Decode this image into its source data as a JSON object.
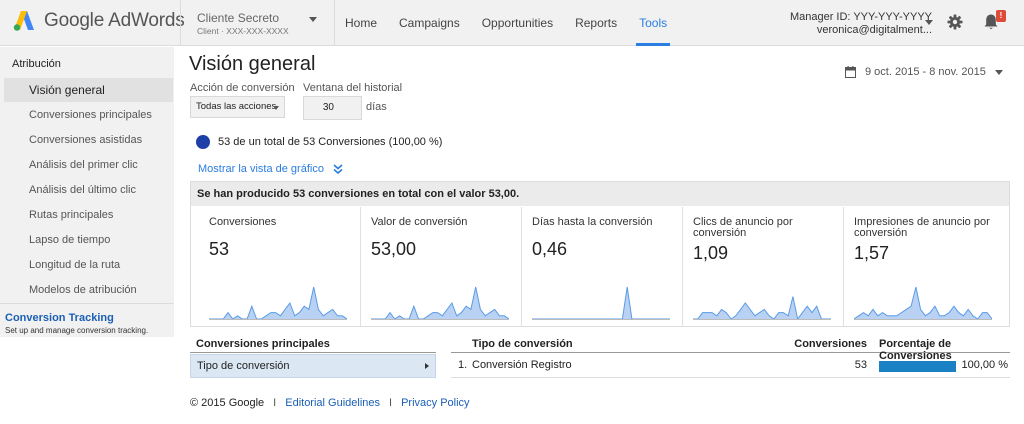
{
  "header": {
    "app_name": "Google AdWords",
    "client_name": "Cliente Secreto",
    "client_id": "Client · XXX-XXX-XXXX",
    "nav": [
      "Home",
      "Campaigns",
      "Opportunities",
      "Reports",
      "Tools"
    ],
    "active_nav": "Tools",
    "manager_id": "Manager ID: YYY-YYY-YYYY",
    "manager_email": "veronica@digitalment...",
    "notification_badge": "!",
    "icons": [
      "adwords-logo-icon",
      "gear-icon",
      "bell-icon"
    ]
  },
  "sidebar": {
    "heading": "Atribución",
    "items": [
      "Visión general",
      "Conversiones principales",
      "Conversiones asistidas",
      "Análisis del primer clic",
      "Análisis del último clic",
      "Rutas principales",
      "Lapso de tiempo",
      "Longitud de la ruta",
      "Modelos de atribución"
    ],
    "active_item": "Visión general",
    "link_title": "Conversion Tracking",
    "link_subtitle": "Set up and manage conversion tracking."
  },
  "main": {
    "title": "Visión general",
    "date_range": "9 oct. 2015 - 8 nov. 2015",
    "action_label": "Acción de conversión",
    "action_value": "Todas las acciones",
    "window_label": "Ventana del historial",
    "window_value": "30",
    "window_unit": "días",
    "summary": "53 de un total de 53 Conversiones (100,00 %)",
    "chart_link": "Mostrar la vista de gráfico",
    "box_heading": "Se han producido 53 conversiones en total con el valor 53,00.",
    "metrics": [
      {
        "label": "Conversiones",
        "value": "53",
        "spark": [
          0,
          0,
          0,
          0,
          1,
          0,
          0.5,
          0,
          0,
          2,
          0,
          0,
          0.5,
          1,
          1,
          0.5,
          1.5,
          2.5,
          0.5,
          1,
          2,
          1.5,
          5,
          1.5,
          0.5,
          1,
          1.5,
          0.5,
          0.5,
          0
        ]
      },
      {
        "label": "Valor de conversión",
        "value": "53,00",
        "spark": [
          0,
          0,
          0,
          0,
          1,
          0,
          0.5,
          0,
          0,
          2,
          0,
          0,
          0.5,
          1,
          1,
          0.5,
          1.5,
          2.5,
          0.5,
          1,
          2,
          1.5,
          5,
          1.5,
          0.5,
          1,
          1.5,
          0.5,
          0.5,
          0
        ]
      },
      {
        "label": "Días hasta la conversión",
        "value": "0,46",
        "spark": [
          0,
          0,
          0,
          0,
          0,
          0,
          0,
          0,
          0,
          0,
          0,
          0,
          0,
          0,
          0,
          0,
          0,
          0,
          0,
          0,
          5,
          0,
          0,
          0,
          0,
          0,
          0,
          0,
          0,
          0
        ]
      },
      {
        "label": "Clics de anuncio por conversión",
        "value": "1,09",
        "spark": [
          0,
          0,
          1,
          1,
          1,
          0.5,
          1.5,
          1,
          0,
          0.5,
          1.5,
          2.5,
          1.5,
          0.5,
          1,
          1.5,
          0.5,
          0,
          1,
          1,
          0.5,
          3.5,
          0,
          1,
          2,
          1,
          2,
          0,
          0,
          0
        ]
      },
      {
        "label": "Impresiones de anuncio por conversión",
        "value": "1,57",
        "spark": [
          0,
          0.5,
          1,
          0.5,
          1.5,
          0.5,
          1,
          0.5,
          0.5,
          0.5,
          1,
          1.5,
          2,
          5,
          1.5,
          0.5,
          1,
          2,
          0.5,
          0.5,
          1,
          2,
          1,
          0.5,
          1.5,
          0.5,
          0,
          1,
          1,
          0
        ]
      }
    ],
    "left_table": {
      "heading": "Conversiones principales",
      "row": "Tipo de conversión"
    },
    "right_table": {
      "col_type": "Tipo de conversión",
      "col_conversions": "Conversiones",
      "col_pct": "Porcentaje de Conversiones",
      "rows": [
        {
          "index": "1.",
          "name": "Conversión Registro",
          "conversions": "53",
          "pct": "100,00 %",
          "pct_fraction": 1.0
        }
      ]
    }
  },
  "footer": {
    "copyright": "© 2015 Google",
    "link1": "Editorial Guidelines",
    "link2": "Privacy Policy",
    "separator": "I"
  },
  "colors": {
    "accent": "#2a7de1",
    "dot": "#1e3ea8",
    "bar": "#1a82c4",
    "spark_fill": "#b9d2f3",
    "spark_line": "#5a9be6",
    "badge": "#dd4b39"
  }
}
